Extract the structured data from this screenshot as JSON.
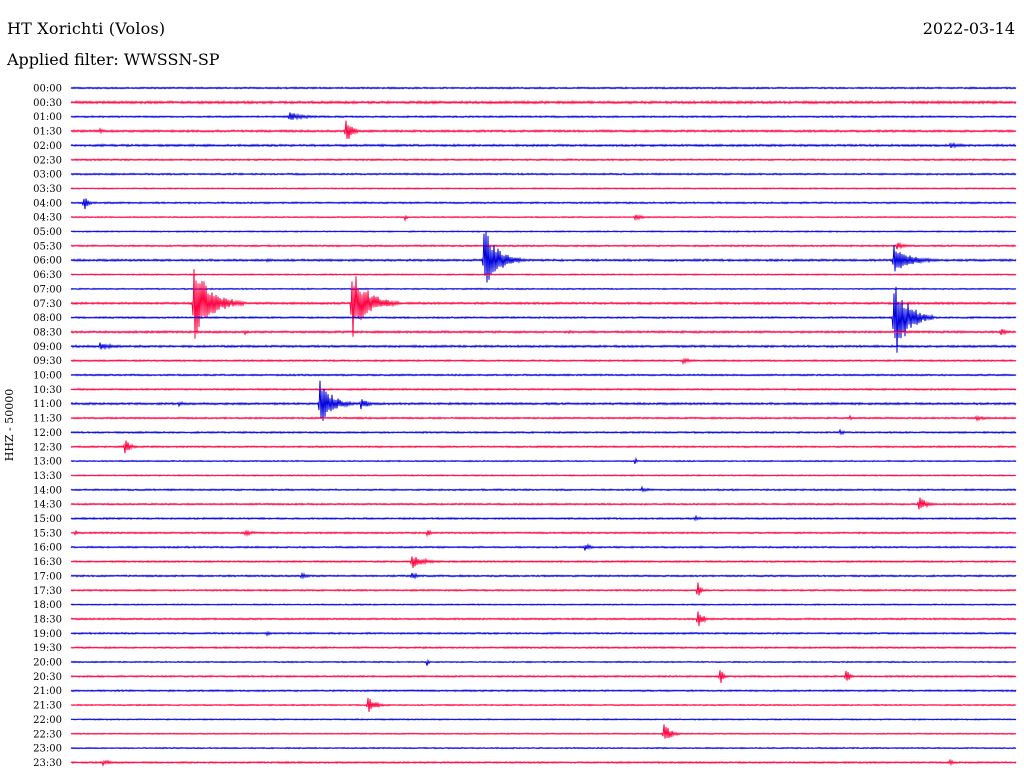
{
  "header": {
    "station": "HT Xorichti (Volos)",
    "filter": "Applied filter: WWSSN-SP",
    "date": "2022-03-14",
    "channel": "HHZ - 50000"
  },
  "colors": {
    "trace_even": "#0000dd",
    "trace_odd": "#ff0040"
  },
  "chart_data": {
    "type": "line",
    "title": "HT Xorichti (Volos)",
    "subtitle": "Applied filter: WWSSN-SP",
    "date": "2022-03-14",
    "ylabel": "HHZ - 50000",
    "row_minutes": 30,
    "time_labels": [
      "00:00",
      "00:30",
      "01:00",
      "01:30",
      "02:00",
      "02:30",
      "03:00",
      "03:30",
      "04:00",
      "04:30",
      "05:00",
      "05:30",
      "06:00",
      "06:30",
      "07:00",
      "07:30",
      "08:00",
      "08:30",
      "09:00",
      "09:30",
      "10:00",
      "10:30",
      "11:00",
      "11:30",
      "12:00",
      "12:30",
      "13:00",
      "13:30",
      "14:00",
      "14:30",
      "15:00",
      "15:30",
      "16:00",
      "16:30",
      "17:00",
      "17:30",
      "18:00",
      "18:30",
      "19:00",
      "19:30",
      "20:00",
      "20:30",
      "21:00",
      "21:30",
      "22:00",
      "22:30",
      "23:00",
      "23:30"
    ],
    "noise_amplitude": [
      0.8,
      1.2,
      0.8,
      1.0,
      1.0,
      0.8,
      0.8,
      0.6,
      0.8,
      0.6,
      0.6,
      0.8,
      1.0,
      0.6,
      0.6,
      1.0,
      0.8,
      1.0,
      1.0,
      0.8,
      0.8,
      0.8,
      1.0,
      0.8,
      0.8,
      0.8,
      0.6,
      0.6,
      0.8,
      0.8,
      0.8,
      0.8,
      0.8,
      0.8,
      0.8,
      0.8,
      0.6,
      0.8,
      0.8,
      0.8,
      0.6,
      0.8,
      0.8,
      0.6,
      0.6,
      0.6,
      0.6,
      0.8
    ],
    "events": [
      {
        "row": 2,
        "minute": 6.9,
        "amplitude": 5,
        "duration": 1.5
      },
      {
        "row": 3,
        "minute": 0.9,
        "amplitude": 3,
        "duration": 0.5
      },
      {
        "row": 3,
        "minute": 8.7,
        "amplitude": 22,
        "duration": 0.5
      },
      {
        "row": 4,
        "minute": 27.9,
        "amplitude": 3,
        "duration": 1.2
      },
      {
        "row": 8,
        "minute": 0.4,
        "amplitude": 9,
        "duration": 0.4
      },
      {
        "row": 9,
        "minute": 10.6,
        "amplitude": 3,
        "duration": 0.3
      },
      {
        "row": 9,
        "minute": 17.9,
        "amplitude": 3,
        "duration": 0.8
      },
      {
        "row": 11,
        "minute": 26.2,
        "amplitude": 4,
        "duration": 0.8
      },
      {
        "row": 12,
        "minute": 13.1,
        "amplitude": 36,
        "duration": 1.3
      },
      {
        "row": 12,
        "minute": 6.2,
        "amplitude": 3,
        "duration": 0.2
      },
      {
        "row": 12,
        "minute": 26.1,
        "amplitude": 18,
        "duration": 1.5
      },
      {
        "row": 15,
        "minute": 3.9,
        "amplitude": 42,
        "duration": 1.6
      },
      {
        "row": 15,
        "minute": 5.1,
        "amplitude": 6,
        "duration": 0.4
      },
      {
        "row": 15,
        "minute": 8.9,
        "amplitude": 40,
        "duration": 1.5
      },
      {
        "row": 16,
        "minute": 26.1,
        "amplitude": 48,
        "duration": 1.3
      },
      {
        "row": 17,
        "minute": 5.5,
        "amplitude": 3,
        "duration": 0.3
      },
      {
        "row": 17,
        "minute": 15.8,
        "amplitude": 3,
        "duration": 0.2
      },
      {
        "row": 17,
        "minute": 29.5,
        "amplitude": 5,
        "duration": 0.5
      },
      {
        "row": 18,
        "minute": 0.9,
        "amplitude": 4,
        "duration": 1.4
      },
      {
        "row": 19,
        "minute": 19.4,
        "amplitude": 3,
        "duration": 1.0
      },
      {
        "row": 22,
        "minute": 3.4,
        "amplitude": 3,
        "duration": 0.6
      },
      {
        "row": 22,
        "minute": 7.9,
        "amplitude": 28,
        "duration": 1.1
      },
      {
        "row": 22,
        "minute": 9.2,
        "amplitude": 6,
        "duration": 0.8
      },
      {
        "row": 23,
        "minute": 24.7,
        "amplitude": 3,
        "duration": 0.3
      },
      {
        "row": 23,
        "minute": 28.7,
        "amplitude": 3,
        "duration": 1.0
      },
      {
        "row": 24,
        "minute": 24.4,
        "amplitude": 3,
        "duration": 0.5
      },
      {
        "row": 25,
        "minute": 1.7,
        "amplitude": 9,
        "duration": 0.5
      },
      {
        "row": 26,
        "minute": 17.9,
        "amplitude": 4,
        "duration": 0.2
      },
      {
        "row": 28,
        "minute": 18.1,
        "amplitude": 3,
        "duration": 0.8
      },
      {
        "row": 29,
        "minute": 26.9,
        "amplitude": 9,
        "duration": 0.7
      },
      {
        "row": 30,
        "minute": 19.8,
        "amplitude": 3,
        "duration": 0.6
      },
      {
        "row": 31,
        "minute": 0.1,
        "amplitude": 3,
        "duration": 0.4
      },
      {
        "row": 31,
        "minute": 5.5,
        "amplitude": 3,
        "duration": 1.0
      },
      {
        "row": 31,
        "minute": 11.3,
        "amplitude": 5,
        "duration": 0.3
      },
      {
        "row": 32,
        "minute": 16.3,
        "amplitude": 4,
        "duration": 0.7
      },
      {
        "row": 33,
        "minute": 10.8,
        "amplitude": 8,
        "duration": 1.2
      },
      {
        "row": 34,
        "minute": 7.3,
        "amplitude": 3,
        "duration": 0.8
      },
      {
        "row": 34,
        "minute": 10.8,
        "amplitude": 5,
        "duration": 0.5
      },
      {
        "row": 35,
        "minute": 19.9,
        "amplitude": 14,
        "duration": 0.2
      },
      {
        "row": 37,
        "minute": 19.9,
        "amplitude": 14,
        "duration": 0.4
      },
      {
        "row": 38,
        "minute": 6.2,
        "amplitude": 3,
        "duration": 0.4
      },
      {
        "row": 40,
        "minute": 11.3,
        "amplitude": 4,
        "duration": 0.2
      },
      {
        "row": 41,
        "minute": 20.6,
        "amplitude": 10,
        "duration": 0.3
      },
      {
        "row": 41,
        "minute": 24.6,
        "amplitude": 12,
        "duration": 0.3
      },
      {
        "row": 43,
        "minute": 9.4,
        "amplitude": 9,
        "duration": 0.8
      },
      {
        "row": 45,
        "minute": 18.8,
        "amplitude": 14,
        "duration": 0.6
      },
      {
        "row": 47,
        "minute": 1.0,
        "amplitude": 3,
        "duration": 1.0
      },
      {
        "row": 47,
        "minute": 27.9,
        "amplitude": 3,
        "duration": 0.4
      }
    ]
  }
}
